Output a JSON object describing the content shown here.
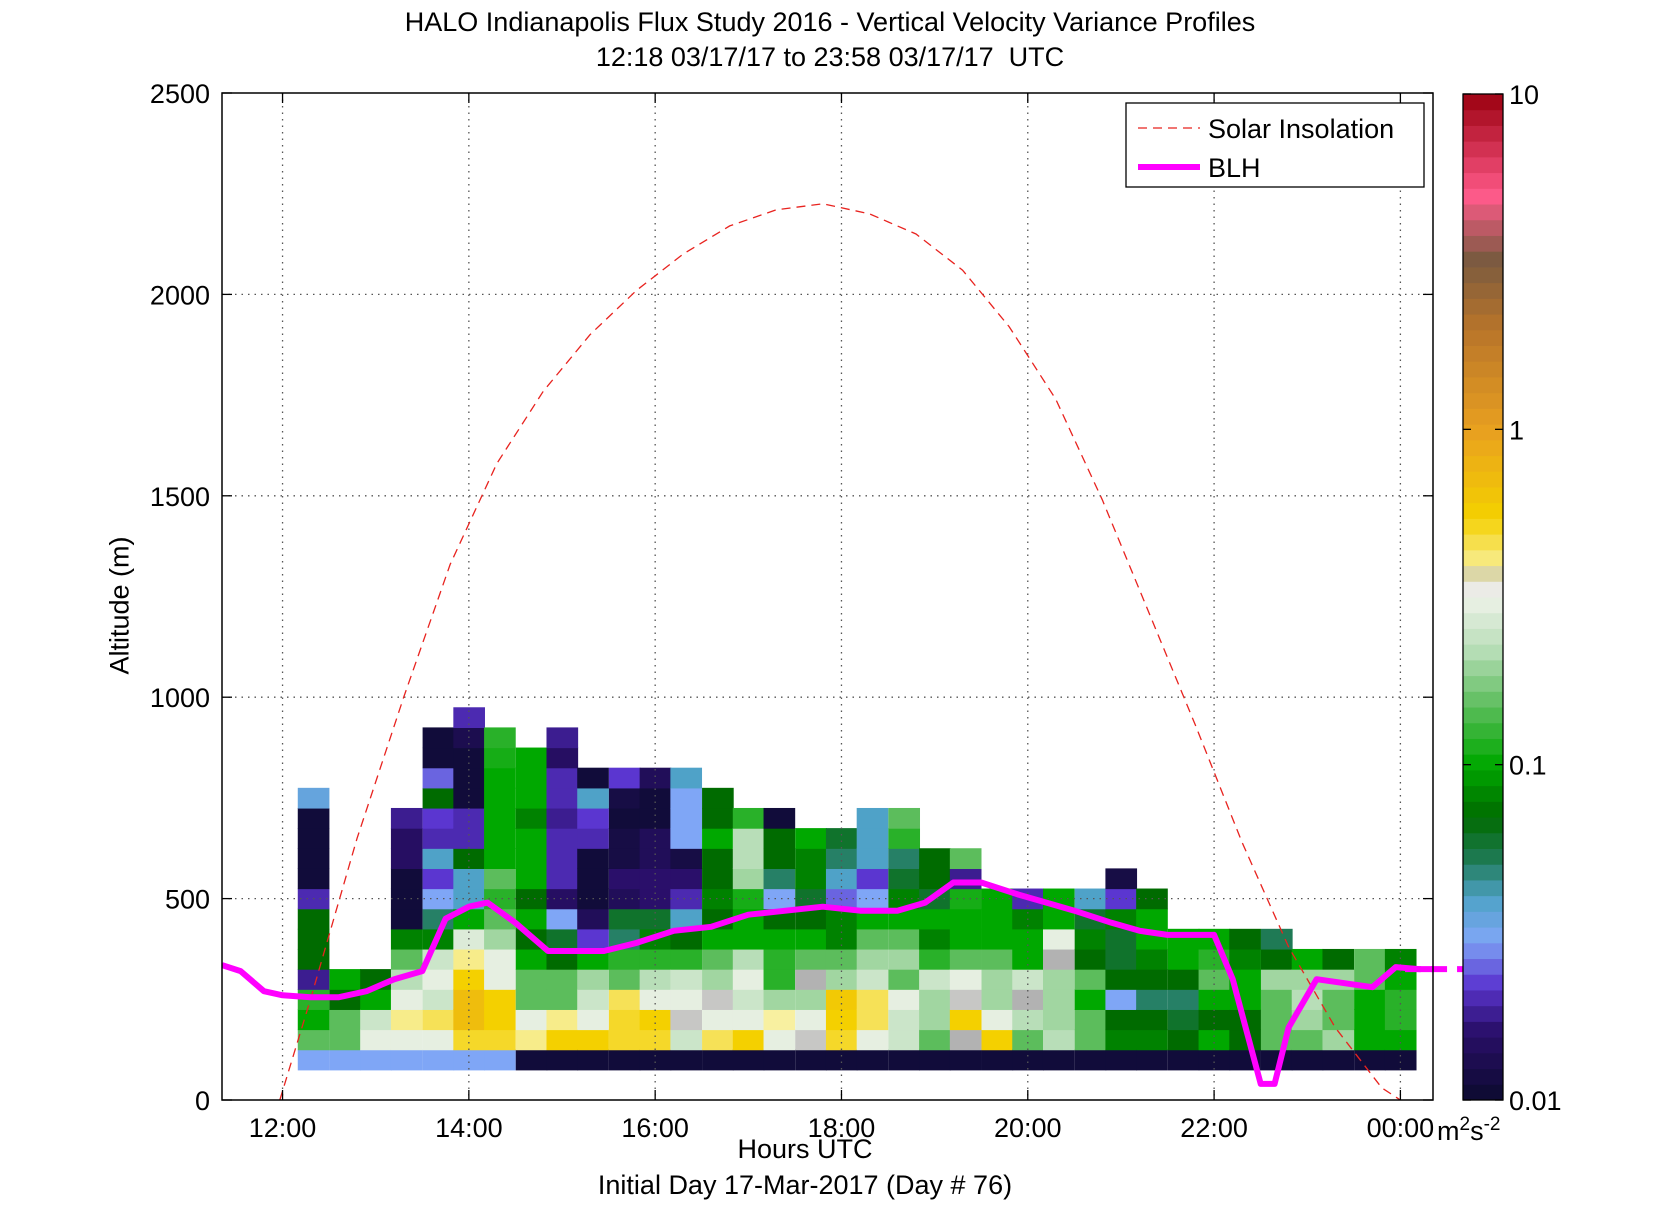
{
  "title_line1": "HALO Indianapolis Flux Study 2016 - Vertical Velocity Variance Profiles",
  "title_line2": "12:18 03/17/17 to 23:58 03/17/17  UTC",
  "xlabel": "Hours UTC",
  "xlabel_sub": "Initial Day 17-Mar-2017 (Day # 76)",
  "ylabel": "Altitude (m)",
  "colorbar_unit_base": "m",
  "colorbar_unit_sup1": "2",
  "colorbar_unit_mid": "s",
  "colorbar_unit_sup2": "-2",
  "legend": [
    {
      "label": "Solar Insolation",
      "color": "#e8231f",
      "style": "dashed"
    },
    {
      "label": "BLH",
      "color": "#ff00ff",
      "style": "solid"
    }
  ],
  "chart_data": {
    "type": "heatmap",
    "xlim": [
      11.35,
      24.35
    ],
    "ylim": [
      0,
      2500
    ],
    "x_ticks": [
      12,
      14,
      16,
      18,
      20,
      22,
      24
    ],
    "x_tick_labels": [
      "12:00",
      "14:00",
      "16:00",
      "18:00",
      "20:00",
      "22:00",
      "00:00"
    ],
    "y_ticks": [
      0,
      500,
      1000,
      1500,
      2000,
      2500
    ],
    "y_tick_labels": [
      "0",
      "500",
      "1000",
      "1500",
      "2000",
      "2500"
    ],
    "grid": true,
    "legend_position": "top-right",
    "colorbar": {
      "scale": "log",
      "range": [
        0.01,
        10
      ],
      "ticks": [
        0.01,
        0.1,
        1,
        10
      ],
      "tick_labels": [
        "0.01",
        "0.1",
        "1",
        "10"
      ],
      "stops": [
        {
          "v": 0.01,
          "c": "#0b0b2e"
        },
        {
          "v": 0.016,
          "c": "#2a0f6a"
        },
        {
          "v": 0.022,
          "c": "#5b36d0"
        },
        {
          "v": 0.03,
          "c": "#7fa6f6"
        },
        {
          "v": 0.04,
          "c": "#4fa2c8"
        },
        {
          "v": 0.052,
          "c": "#1f7a55"
        },
        {
          "v": 0.07,
          "c": "#006b00"
        },
        {
          "v": 0.1,
          "c": "#00a800"
        },
        {
          "v": 0.15,
          "c": "#5cbd5c"
        },
        {
          "v": 0.22,
          "c": "#b8deb8"
        },
        {
          "v": 0.33,
          "c": "#f4f4ee"
        },
        {
          "v": 0.36,
          "c": "#b2b2b2"
        },
        {
          "v": 0.38,
          "c": "#f8f0a0"
        },
        {
          "v": 0.55,
          "c": "#f4d000"
        },
        {
          "v": 1.0,
          "c": "#e8a020"
        },
        {
          "v": 2.0,
          "c": "#b8742a"
        },
        {
          "v": 3.2,
          "c": "#7a5a40"
        },
        {
          "v": 5.0,
          "c": "#ff5a8a"
        },
        {
          "v": 10.0,
          "c": "#9b0010"
        }
      ]
    },
    "bin_width_h": 0.3333,
    "bin_height_m": 50,
    "profiles": [
      {
        "x": 12.33,
        "y0": 75,
        "vals": [
          0.03,
          0.15,
          0.1,
          0.12,
          0.018,
          0.07,
          0.07,
          0.07,
          0.02,
          0.011,
          0.011,
          0.011,
          0.011,
          0.035
        ]
      },
      {
        "x": 12.67,
        "y0": 75,
        "vals": [
          0.03,
          0.15,
          0.15,
          0.07,
          0.1
        ]
      },
      {
        "x": 13.0,
        "y0": 75,
        "vals": [
          0.03,
          0.3,
          0.25,
          0.1,
          0.07
        ]
      },
      {
        "x": 13.33,
        "y0": 75,
        "vals": [
          0.03,
          0.3,
          0.4,
          0.3,
          0.22,
          0.15,
          0.08,
          0.011,
          0.011,
          0.011,
          0.015,
          0.015,
          0.018
        ]
      },
      {
        "x": 13.67,
        "y0": 75,
        "vals": [
          0.03,
          0.3,
          0.45,
          0.25,
          0.3,
          0.25,
          0.08,
          0.05,
          0.03,
          0.022,
          0.04,
          0.02,
          0.022,
          0.07,
          0.025,
          0.011,
          0.011
        ]
      },
      {
        "x": 14.0,
        "y0": 75,
        "vals": [
          0.03,
          0.5,
          0.7,
          0.7,
          0.55,
          0.4,
          0.28,
          0.1,
          0.04,
          0.04,
          0.07,
          0.02,
          0.02,
          0.011,
          0.011,
          0.011,
          0.013,
          0.02
        ]
      },
      {
        "x": 14.33,
        "y0": 75,
        "vals": [
          0.03,
          0.5,
          0.55,
          0.55,
          0.3,
          0.3,
          0.2,
          0.15,
          0.12,
          0.15,
          0.1,
          0.1,
          0.1,
          0.1,
          0.1,
          0.11,
          0.12
        ]
      },
      {
        "x": 14.67,
        "y0": 75,
        "vals": [
          0.011,
          0.4,
          0.3,
          0.15,
          0.15,
          0.1,
          0.07,
          0.1,
          0.07,
          0.1,
          0.1,
          0.1,
          0.08,
          0.1,
          0.1,
          0.1
        ]
      },
      {
        "x": 15.0,
        "y0": 75,
        "vals": [
          0.011,
          0.55,
          0.4,
          0.15,
          0.15,
          0.07,
          0.06,
          0.03,
          0.015,
          0.02,
          0.02,
          0.02,
          0.018,
          0.02,
          0.02,
          0.015,
          0.018
        ]
      },
      {
        "x": 15.33,
        "y0": 75,
        "vals": [
          0.011,
          0.55,
          0.3,
          0.25,
          0.2,
          0.1,
          0.022,
          0.014,
          0.011,
          0.011,
          0.011,
          0.02,
          0.022,
          0.04,
          0.011
        ]
      },
      {
        "x": 15.67,
        "y0": 75,
        "vals": [
          0.011,
          0.5,
          0.5,
          0.45,
          0.15,
          0.12,
          0.05,
          0.06,
          0.014,
          0.016,
          0.012,
          0.012,
          0.011,
          0.012,
          0.022
        ]
      },
      {
        "x": 16.0,
        "y0": 75,
        "vals": [
          0.011,
          0.5,
          0.55,
          0.3,
          0.22,
          0.12,
          0.08,
          0.06,
          0.016,
          0.016,
          0.014,
          0.014,
          0.011,
          0.011,
          0.014
        ]
      },
      {
        "x": 16.33,
        "y0": 75,
        "vals": [
          0.011,
          0.25,
          0.35,
          0.3,
          0.25,
          0.12,
          0.07,
          0.04,
          0.02,
          0.016,
          0.012,
          0.03,
          0.03,
          0.03,
          0.04
        ]
      },
      {
        "x": 16.67,
        "y0": 75,
        "vals": [
          0.011,
          0.45,
          0.3,
          0.35,
          0.2,
          0.15,
          0.1,
          0.07,
          0.08,
          0.07,
          0.07,
          0.1,
          0.07,
          0.07
        ]
      },
      {
        "x": 17.0,
        "y0": 75,
        "vals": [
          0.011,
          0.55,
          0.3,
          0.25,
          0.3,
          0.22,
          0.1,
          0.1,
          0.11,
          0.2,
          0.22,
          0.22,
          0.12
        ]
      },
      {
        "x": 17.33,
        "y0": 75,
        "vals": [
          0.011,
          0.3,
          0.38,
          0.2,
          0.12,
          0.12,
          0.1,
          0.07,
          0.03,
          0.05,
          0.07,
          0.07,
          0.011
        ]
      },
      {
        "x": 17.67,
        "y0": 75,
        "vals": [
          0.011,
          0.35,
          0.3,
          0.2,
          0.36,
          0.15,
          0.1,
          0.07,
          0.06,
          0.08,
          0.08,
          0.1
        ]
      },
      {
        "x": 18.0,
        "y0": 75,
        "vals": [
          0.011,
          0.5,
          0.55,
          0.6,
          0.2,
          0.15,
          0.08,
          0.08,
          0.025,
          0.04,
          0.05,
          0.06
        ]
      },
      {
        "x": 18.33,
        "y0": 75,
        "vals": [
          0.011,
          0.3,
          0.45,
          0.45,
          0.25,
          0.2,
          0.15,
          0.1,
          0.03,
          0.022,
          0.04,
          0.04,
          0.04
        ]
      },
      {
        "x": 18.67,
        "y0": 75,
        "vals": [
          0.011,
          0.25,
          0.25,
          0.3,
          0.15,
          0.2,
          0.15,
          0.1,
          0.08,
          0.06,
          0.05,
          0.12,
          0.15
        ]
      },
      {
        "x": 19.0,
        "y0": 75,
        "vals": [
          0.011,
          0.15,
          0.2,
          0.2,
          0.25,
          0.12,
          0.08,
          0.1,
          0.06,
          0.07,
          0.07
        ]
      },
      {
        "x": 19.33,
        "y0": 75,
        "vals": [
          0.011,
          0.36,
          0.55,
          0.35,
          0.3,
          0.15,
          0.1,
          0.1,
          0.11,
          0.018,
          0.15
        ]
      },
      {
        "x": 19.67,
        "y0": 75,
        "vals": [
          0.011,
          0.55,
          0.3,
          0.2,
          0.2,
          0.15,
          0.1,
          0.1,
          0.1
        ]
      },
      {
        "x": 20.0,
        "y0": 75,
        "vals": [
          0.011,
          0.15,
          0.22,
          0.36,
          0.25,
          0.1,
          0.1,
          0.08,
          0.02
        ]
      },
      {
        "x": 20.33,
        "y0": 75,
        "vals": [
          0.011,
          0.22,
          0.2,
          0.2,
          0.2,
          0.36,
          0.3,
          0.1,
          0.1
        ]
      },
      {
        "x": 20.67,
        "y0": 75,
        "vals": [
          0.011,
          0.15,
          0.15,
          0.1,
          0.15,
          0.07,
          0.08,
          0.06,
          0.04
        ]
      },
      {
        "x": 21.0,
        "y0": 75,
        "vals": [
          0.011,
          0.08,
          0.07,
          0.03,
          0.07,
          0.06,
          0.06,
          0.08,
          0.022,
          0.012
        ]
      },
      {
        "x": 21.33,
        "y0": 75,
        "vals": [
          0.011,
          0.08,
          0.07,
          0.05,
          0.07,
          0.08,
          0.1,
          0.1,
          0.07
        ]
      },
      {
        "x": 21.67,
        "y0": 75,
        "vals": [
          0.011,
          0.07,
          0.06,
          0.05,
          0.07,
          0.1,
          0.1
        ]
      },
      {
        "x": 22.0,
        "y0": 75,
        "vals": [
          0.011,
          0.1,
          0.07,
          0.1,
          0.15,
          0.12,
          0.1
        ]
      },
      {
        "x": 22.33,
        "y0": 75,
        "vals": [
          0.011,
          0.07,
          0.07,
          0.1,
          0.1,
          0.08,
          0.07
        ]
      },
      {
        "x": 22.67,
        "y0": 75,
        "vals": [
          0.011,
          0.15,
          0.15,
          0.15,
          0.2,
          0.07,
          0.052
        ]
      },
      {
        "x": 23.0,
        "y0": 75,
        "vals": [
          0.011,
          0.15,
          0.2,
          0.22,
          0.2,
          0.1
        ]
      },
      {
        "x": 23.33,
        "y0": 75,
        "vals": [
          0.011,
          0.2,
          0.15,
          0.15,
          0.2,
          0.07
        ]
      },
      {
        "x": 23.67,
        "y0": 75,
        "vals": [
          0.011,
          0.1,
          0.1,
          0.1,
          0.15,
          0.15
        ]
      },
      {
        "x": 24.0,
        "y0": 75,
        "vals": [
          0.011,
          0.1,
          0.12,
          0.12,
          0.1,
          0.08
        ]
      }
    ],
    "series": [
      {
        "name": "Solar Insolation",
        "x": [
          11.97,
          12.3,
          12.8,
          13.3,
          13.8,
          14.3,
          14.8,
          15.3,
          15.8,
          16.3,
          16.8,
          17.3,
          17.8,
          18.3,
          18.8,
          19.3,
          19.8,
          20.3,
          20.8,
          21.3,
          21.8,
          22.3,
          22.8,
          23.3,
          23.8,
          24.0
        ],
        "y": [
          0,
          250,
          650,
          1000,
          1330,
          1580,
          1760,
          1900,
          2010,
          2100,
          2170,
          2210,
          2225,
          2200,
          2150,
          2060,
          1920,
          1740,
          1490,
          1210,
          930,
          640,
          380,
          180,
          30,
          0
        ]
      },
      {
        "name": "BLH",
        "x": [
          11.35,
          11.55,
          11.8,
          12.0,
          12.3,
          12.6,
          12.9,
          13.2,
          13.5,
          13.75,
          14.0,
          14.2,
          14.5,
          14.85,
          15.15,
          15.45,
          15.8,
          16.2,
          16.6,
          17.0,
          17.4,
          17.8,
          18.2,
          18.6,
          18.9,
          19.2,
          19.5,
          19.9,
          20.2,
          20.5,
          20.9,
          21.2,
          21.5,
          21.8,
          22.0,
          22.2,
          22.5,
          22.65,
          22.8,
          23.1,
          23.4,
          23.7,
          23.95,
          24.2,
          24.35
        ],
        "y": [
          335,
          320,
          270,
          260,
          255,
          255,
          270,
          300,
          320,
          450,
          480,
          490,
          440,
          370,
          370,
          370,
          390,
          420,
          430,
          460,
          470,
          480,
          470,
          470,
          490,
          540,
          540,
          510,
          490,
          470,
          440,
          420,
          410,
          410,
          410,
          300,
          40,
          40,
          180,
          300,
          290,
          280,
          330,
          325,
          325
        ]
      }
    ]
  }
}
